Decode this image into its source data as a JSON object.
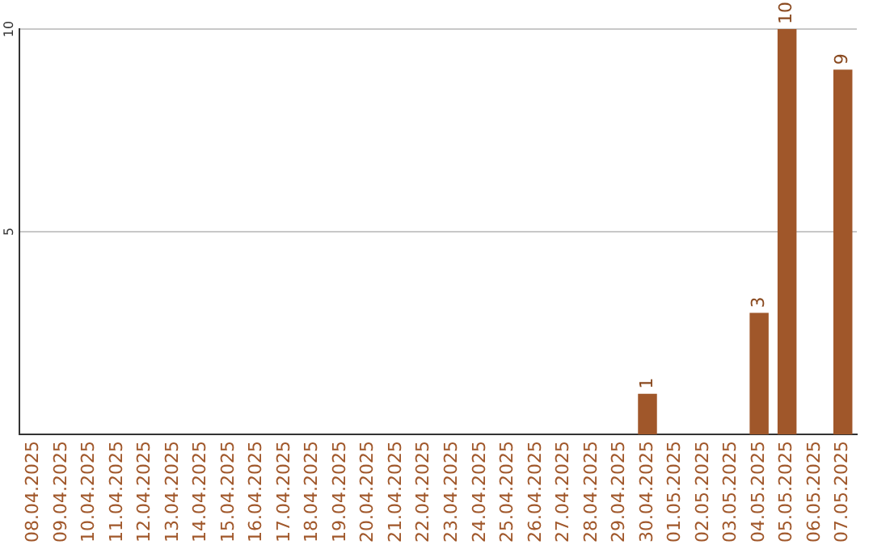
{
  "chart_data": {
    "type": "bar",
    "categories": [
      "08.04.2025",
      "09.04.2025",
      "10.04.2025",
      "11.04.2025",
      "12.04.2025",
      "13.04.2025",
      "14.04.2025",
      "15.04.2025",
      "16.04.2025",
      "17.04.2025",
      "18.04.2025",
      "19.04.2025",
      "20.04.2025",
      "21.04.2025",
      "22.04.2025",
      "23.04.2025",
      "24.04.2025",
      "25.04.2025",
      "26.04.2025",
      "27.04.2025",
      "28.04.2025",
      "29.04.2025",
      "30.04.2025",
      "01.05.2025",
      "02.05.2025",
      "03.05.2025",
      "04.05.2025",
      "05.05.2025",
      "06.05.2025",
      "07.05.2025"
    ],
    "values": [
      0,
      0,
      0,
      0,
      0,
      0,
      0,
      0,
      0,
      0,
      0,
      0,
      0,
      0,
      0,
      0,
      0,
      0,
      0,
      0,
      0,
      0,
      1,
      0,
      0,
      0,
      3,
      10,
      0,
      9
    ],
    "value_labels": [
      null,
      null,
      null,
      null,
      null,
      null,
      null,
      null,
      null,
      null,
      null,
      null,
      null,
      null,
      null,
      null,
      null,
      null,
      null,
      null,
      null,
      null,
      "1",
      null,
      null,
      null,
      "3",
      "10",
      null,
      "9"
    ],
    "color": "#a0572a",
    "ylim": [
      0,
      10
    ],
    "yticks": [
      5,
      10
    ],
    "grid": "y",
    "legend": false
  }
}
